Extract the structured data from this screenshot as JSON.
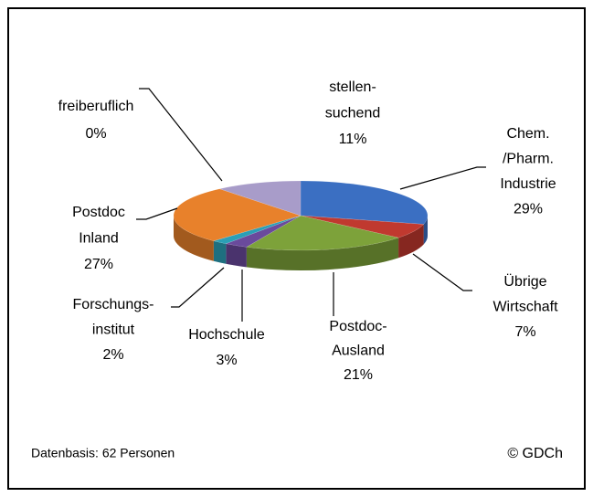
{
  "chart_data": {
    "type": "pie3d",
    "categories": [
      [
        "Chem.",
        "/Pharm.",
        "Industrie"
      ],
      [
        "Übrige",
        "Wirtschaft"
      ],
      [
        "Postdoc-",
        "Ausland"
      ],
      [
        "Hochschule"
      ],
      [
        "Forschungs-",
        "institut"
      ],
      [
        "Postdoc",
        "Inland"
      ],
      [
        "freiberuflich"
      ],
      [
        "stellen-",
        "suchend"
      ]
    ],
    "values": [
      29,
      7,
      21,
      3,
      2,
      27,
      0,
      11
    ],
    "value_labels": [
      "29%",
      "7%",
      "21%",
      "3%",
      "2%",
      "27%",
      "0%",
      "11%"
    ],
    "colors": [
      "#3b6fc2",
      "#c0392f",
      "#7da23a",
      "#6a4a9c",
      "#2b9fb6",
      "#e8812b",
      "#4f81bd",
      "#a89cc9"
    ],
    "source": "Datenbasis: 62 Personen",
    "copyright": "© GDCh"
  }
}
